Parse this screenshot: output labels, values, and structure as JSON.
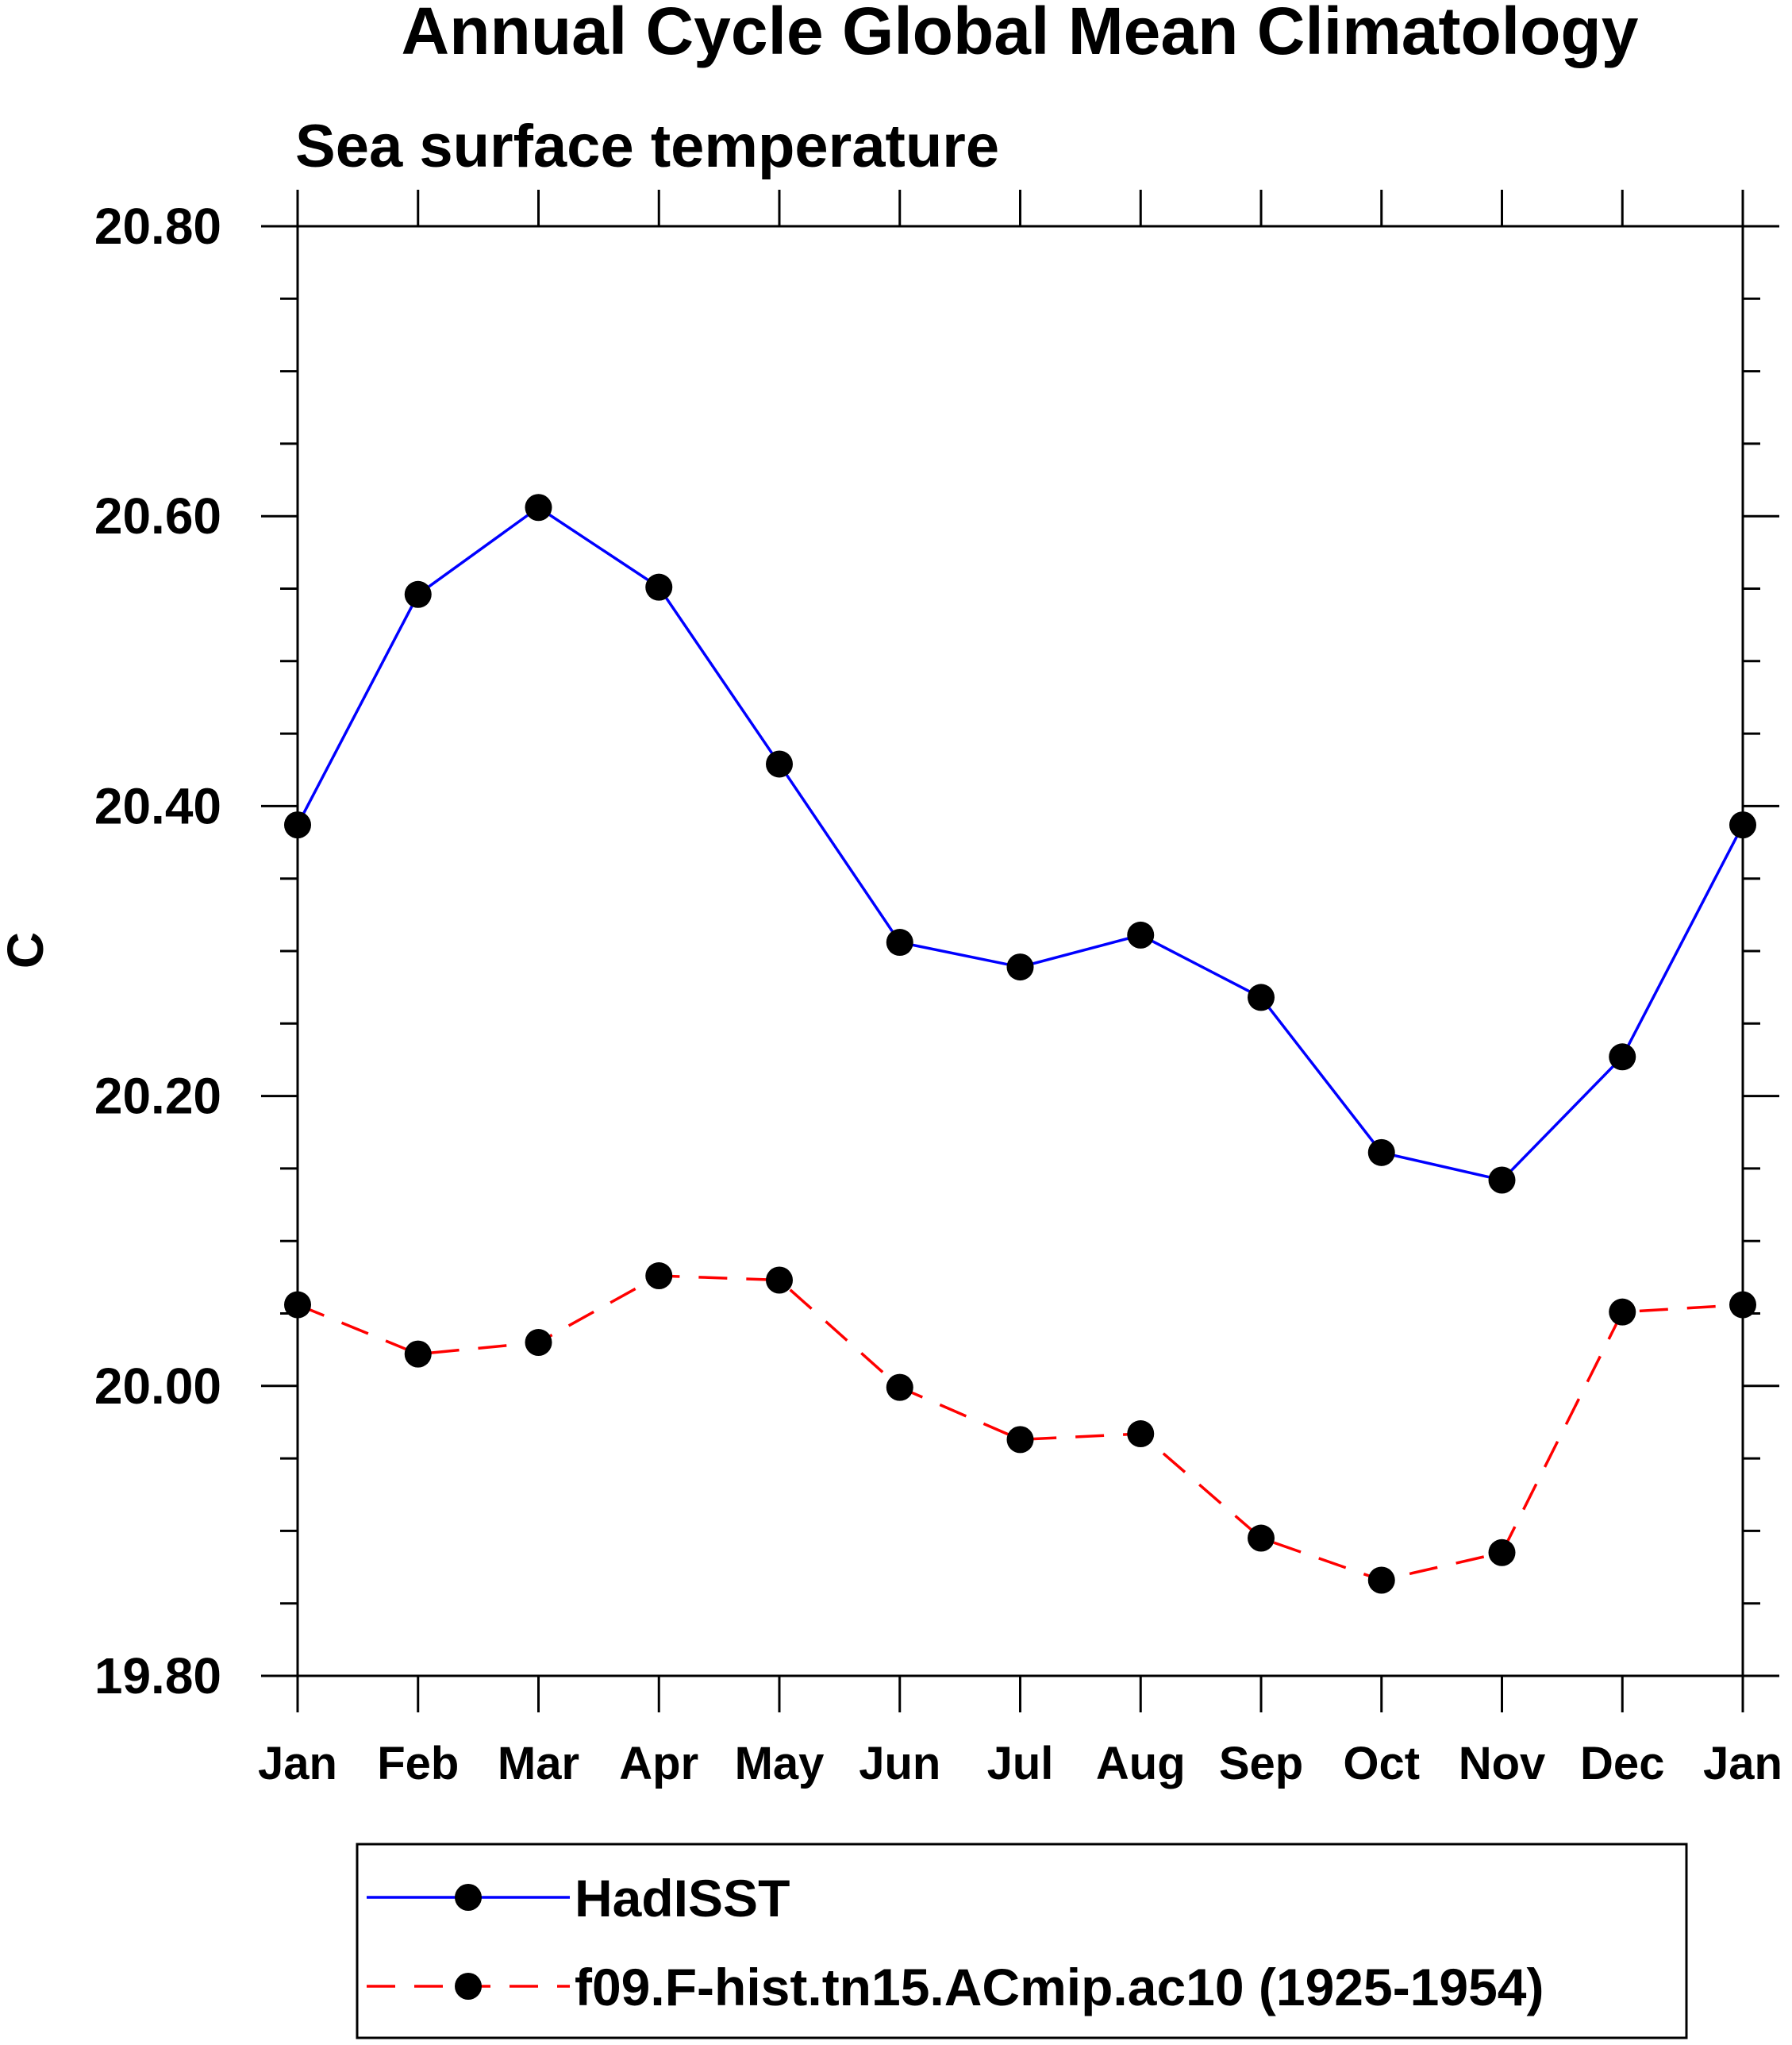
{
  "chart_data": {
    "type": "line",
    "title": "Annual Cycle Global Mean Climatology",
    "subtitle": "Sea surface temperature",
    "ylabel": "C",
    "xlabel": "",
    "categories": [
      "Jan",
      "Feb",
      "Mar",
      "Apr",
      "May",
      "Jun",
      "Jul",
      "Aug",
      "Sep",
      "Oct",
      "Nov",
      "Dec",
      "Jan"
    ],
    "ylim": [
      19.8,
      20.8
    ],
    "yticks": [
      19.8,
      20.0,
      20.2,
      20.4,
      20.6,
      20.8
    ],
    "ytick_labels": [
      "19.80",
      "20.00",
      "20.20",
      "20.40",
      "20.60",
      "20.80"
    ],
    "y_minor_step": 0.05,
    "grid": false,
    "legend_position": "bottom",
    "series": [
      {
        "name": "HadISST",
        "color": "#0000ff",
        "dash": "solid",
        "values": [
          20.387,
          20.546,
          20.606,
          20.551,
          20.429,
          20.306,
          20.289,
          20.311,
          20.268,
          20.161,
          20.142,
          20.227,
          20.387
        ]
      },
      {
        "name": "f09.F-hist.tn15.ACmip.ac10 (1925-1954)",
        "color": "#ff0000",
        "dash": "dashed",
        "values": [
          20.056,
          20.022,
          20.03,
          20.076,
          20.073,
          19.999,
          19.963,
          19.967,
          19.895,
          19.866,
          19.885,
          20.051,
          20.056
        ]
      }
    ]
  }
}
